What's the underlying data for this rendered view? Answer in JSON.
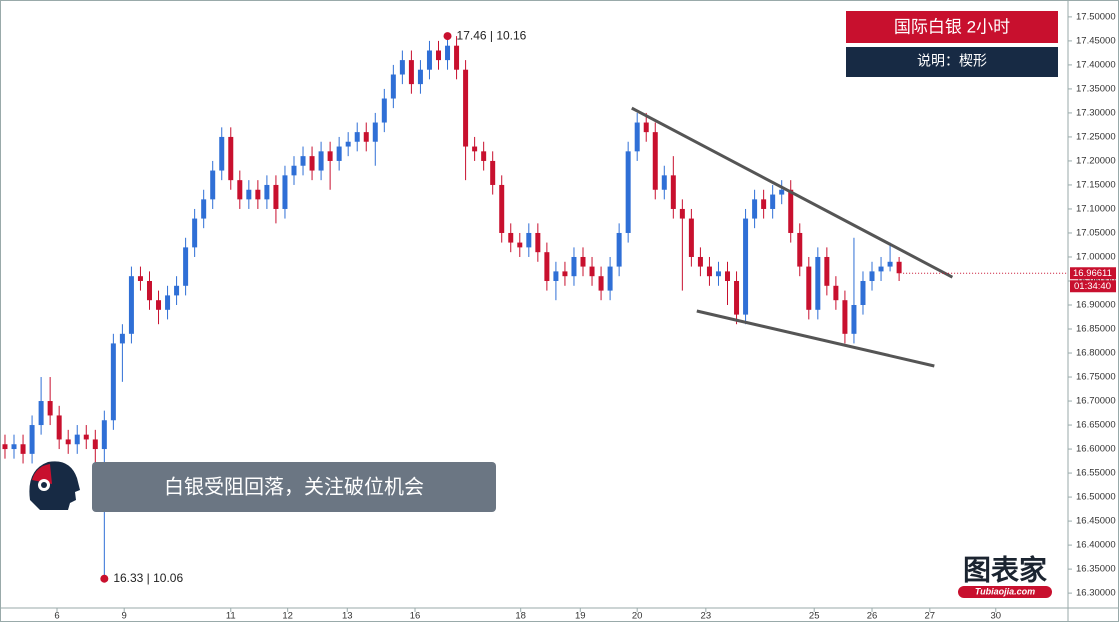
{
  "chart_data": {
    "type": "candlestick",
    "title": "国际白银 2小时",
    "subtitle": "说明：楔形",
    "banner": "白银受阻回落，关注破位机会",
    "logo": "图表家",
    "logo_sub": "Tubiaojia.com",
    "up_color": "#2f6fd6",
    "down_color": "#c8102e",
    "open": [
      16.61,
      16.6,
      16.61,
      16.59,
      16.65,
      16.7,
      16.67,
      16.62,
      16.61,
      16.63,
      16.62,
      16.6,
      16.66,
      16.82,
      16.84,
      16.96,
      16.95,
      16.91,
      16.89,
      16.92,
      16.94,
      17.02,
      17.08,
      17.12,
      17.18,
      17.25,
      17.16,
      17.12,
      17.14,
      17.12,
      17.15,
      17.1,
      17.17,
      17.19,
      17.21,
      17.18,
      17.22,
      17.2,
      17.23,
      17.24,
      17.26,
      17.24,
      17.28,
      17.33,
      17.38,
      17.41,
      17.36,
      17.39,
      17.43,
      17.41,
      17.44,
      17.39,
      17.23,
      17.22,
      17.2,
      17.15,
      17.05,
      17.03,
      17.02,
      17.05,
      17.01,
      16.95,
      16.97,
      16.96,
      17.0,
      16.98,
      16.96,
      16.93,
      16.98,
      17.05,
      17.22,
      17.28,
      17.26,
      17.14,
      17.17,
      17.1,
      17.08,
      17.0,
      16.98,
      16.96,
      16.97,
      16.95,
      16.88,
      17.08,
      17.12,
      17.1,
      17.13,
      17.14,
      17.05,
      16.98,
      16.89,
      17.0,
      16.94,
      16.91,
      16.84,
      16.9,
      16.95,
      16.97,
      16.98,
      16.99
    ],
    "high": [
      16.63,
      16.63,
      16.63,
      16.67,
      16.75,
      16.75,
      16.69,
      16.64,
      16.65,
      16.65,
      16.64,
      16.68,
      16.84,
      16.86,
      16.98,
      16.98,
      16.97,
      16.93,
      16.94,
      16.96,
      17.04,
      17.1,
      17.14,
      17.2,
      17.27,
      17.27,
      17.18,
      17.16,
      17.16,
      17.17,
      17.17,
      17.19,
      17.21,
      17.23,
      17.23,
      17.24,
      17.24,
      17.25,
      17.26,
      17.28,
      17.28,
      17.3,
      17.35,
      17.4,
      17.43,
      17.43,
      17.41,
      17.45,
      17.45,
      17.46,
      17.46,
      17.41,
      17.25,
      17.24,
      17.22,
      17.17,
      17.07,
      17.05,
      17.07,
      17.07,
      17.03,
      16.99,
      16.99,
      17.02,
      17.02,
      17.0,
      16.98,
      17.0,
      17.07,
      17.24,
      17.3,
      17.3,
      17.28,
      17.19,
      17.21,
      17.12,
      17.1,
      17.02,
      17.0,
      16.99,
      16.99,
      16.97,
      17.1,
      17.14,
      17.14,
      17.15,
      17.16,
      17.16,
      17.07,
      17.0,
      17.02,
      17.02,
      16.96,
      16.93,
      17.04,
      16.97,
      16.99,
      17.0,
      17.03,
      17.0
    ],
    "low": [
      16.58,
      16.58,
      16.57,
      16.57,
      16.63,
      16.65,
      16.6,
      16.59,
      16.59,
      16.6,
      16.55,
      16.33,
      16.64,
      16.74,
      16.82,
      16.93,
      16.89,
      16.86,
      16.87,
      16.9,
      16.92,
      17.0,
      17.06,
      17.1,
      17.16,
      17.14,
      17.1,
      17.1,
      17.1,
      17.1,
      17.07,
      17.08,
      17.15,
      17.17,
      17.16,
      17.16,
      17.14,
      17.18,
      17.21,
      17.22,
      17.22,
      17.19,
      17.26,
      17.31,
      17.36,
      17.34,
      17.34,
      17.37,
      17.39,
      17.39,
      17.37,
      17.16,
      17.2,
      17.18,
      17.13,
      17.03,
      17.01,
      17.0,
      17.0,
      16.99,
      16.93,
      16.91,
      16.94,
      16.94,
      16.96,
      16.94,
      16.91,
      16.91,
      16.96,
      17.03,
      17.2,
      17.24,
      17.12,
      17.12,
      17.08,
      16.93,
      16.98,
      16.96,
      16.94,
      16.94,
      16.9,
      16.86,
      16.86,
      17.06,
      17.08,
      17.08,
      17.11,
      17.03,
      16.96,
      16.87,
      16.87,
      16.92,
      16.89,
      16.82,
      16.82,
      16.88,
      16.93,
      16.95,
      16.97,
      16.95
    ],
    "close": [
      16.6,
      16.61,
      16.59,
      16.65,
      16.7,
      16.67,
      16.62,
      16.61,
      16.63,
      16.62,
      16.6,
      16.66,
      16.82,
      16.84,
      16.96,
      16.95,
      16.91,
      16.89,
      16.92,
      16.94,
      17.02,
      17.08,
      17.12,
      17.18,
      17.25,
      17.16,
      17.12,
      17.14,
      17.12,
      17.15,
      17.1,
      17.17,
      17.19,
      17.21,
      17.18,
      17.22,
      17.2,
      17.23,
      17.24,
      17.26,
      17.24,
      17.28,
      17.33,
      17.38,
      17.41,
      17.36,
      17.39,
      17.43,
      17.41,
      17.44,
      17.39,
      17.23,
      17.22,
      17.2,
      17.15,
      17.05,
      17.03,
      17.02,
      17.05,
      17.01,
      16.95,
      16.97,
      16.96,
      17.0,
      16.98,
      16.96,
      16.93,
      16.98,
      17.05,
      17.22,
      17.28,
      17.26,
      17.14,
      17.17,
      17.1,
      17.08,
      17.0,
      16.98,
      16.96,
      16.97,
      16.95,
      16.88,
      17.08,
      17.12,
      17.1,
      17.13,
      17.14,
      17.05,
      16.98,
      16.89,
      17.0,
      16.94,
      16.91,
      16.84,
      16.9,
      16.95,
      16.97,
      16.98,
      16.99,
      16.96611
    ],
    "last_price": 16.96611,
    "countdown": "01:34:40",
    "annotations": [
      {
        "text": "17.46 | 10.16",
        "x": 49,
        "y": 17.46
      },
      {
        "text": "16.33 | 10.06",
        "x": 11,
        "y": 16.33
      }
    ],
    "trendlines": [
      {
        "x": [
          69.4,
          104.9
        ],
        "y": [
          17.31,
          16.958
        ]
      },
      {
        "x": [
          76.6,
          102.9
        ],
        "y": [
          16.8875,
          16.773
        ]
      }
    ],
    "xlim": [
      -0.33,
      117.7
    ],
    "xticks": [
      {
        "value": 5.76,
        "label": "6"
      },
      {
        "value": 13.2,
        "label": "9"
      },
      {
        "value": 25.0,
        "label": "11"
      },
      {
        "value": 31.3,
        "label": "12"
      },
      {
        "value": 37.9,
        "label": "13"
      },
      {
        "value": 45.4,
        "label": "16"
      },
      {
        "value": 57.1,
        "label": "18"
      },
      {
        "value": 63.7,
        "label": "19"
      },
      {
        "value": 70.0,
        "label": "20"
      },
      {
        "value": 77.6,
        "label": "23"
      },
      {
        "value": 89.6,
        "label": "25"
      },
      {
        "value": 96.0,
        "label": "26"
      },
      {
        "value": 102.4,
        "label": "27"
      },
      {
        "value": 109.7,
        "label": "30"
      }
    ],
    "ylim": [
      16.269,
      17.531
    ],
    "yticks": [
      {
        "value": 17.5,
        "label": "17.50000"
      },
      {
        "value": 17.45,
        "label": "17.45000"
      },
      {
        "value": 17.4,
        "label": "17.40000"
      },
      {
        "value": 17.35,
        "label": "17.35000"
      },
      {
        "value": 17.3,
        "label": "17.30000"
      },
      {
        "value": 17.25,
        "label": "17.25000"
      },
      {
        "value": 17.2,
        "label": "17.20000"
      },
      {
        "value": 17.15,
        "label": "17.15000"
      },
      {
        "value": 17.1,
        "label": "17.10000"
      },
      {
        "value": 17.05,
        "label": "17.05000"
      },
      {
        "value": 17.0,
        "label": "17.00000"
      },
      {
        "value": 16.95,
        "label": "16.95000"
      },
      {
        "value": 16.9,
        "label": "16.90000"
      },
      {
        "value": 16.85,
        "label": "16.85000"
      },
      {
        "value": 16.8,
        "label": "16.80000"
      },
      {
        "value": 16.75,
        "label": "16.75000"
      },
      {
        "value": 16.7,
        "label": "16.70000"
      },
      {
        "value": 16.65,
        "label": "16.65000"
      },
      {
        "value": 16.6,
        "label": "16.60000"
      },
      {
        "value": 16.55,
        "label": "16.55000"
      },
      {
        "value": 16.5,
        "label": "16.50000"
      },
      {
        "value": 16.45,
        "label": "16.45000"
      },
      {
        "value": 16.4,
        "label": "16.40000"
      },
      {
        "value": 16.35,
        "label": "16.35000"
      },
      {
        "value": 16.3,
        "label": "16.30000"
      }
    ]
  }
}
